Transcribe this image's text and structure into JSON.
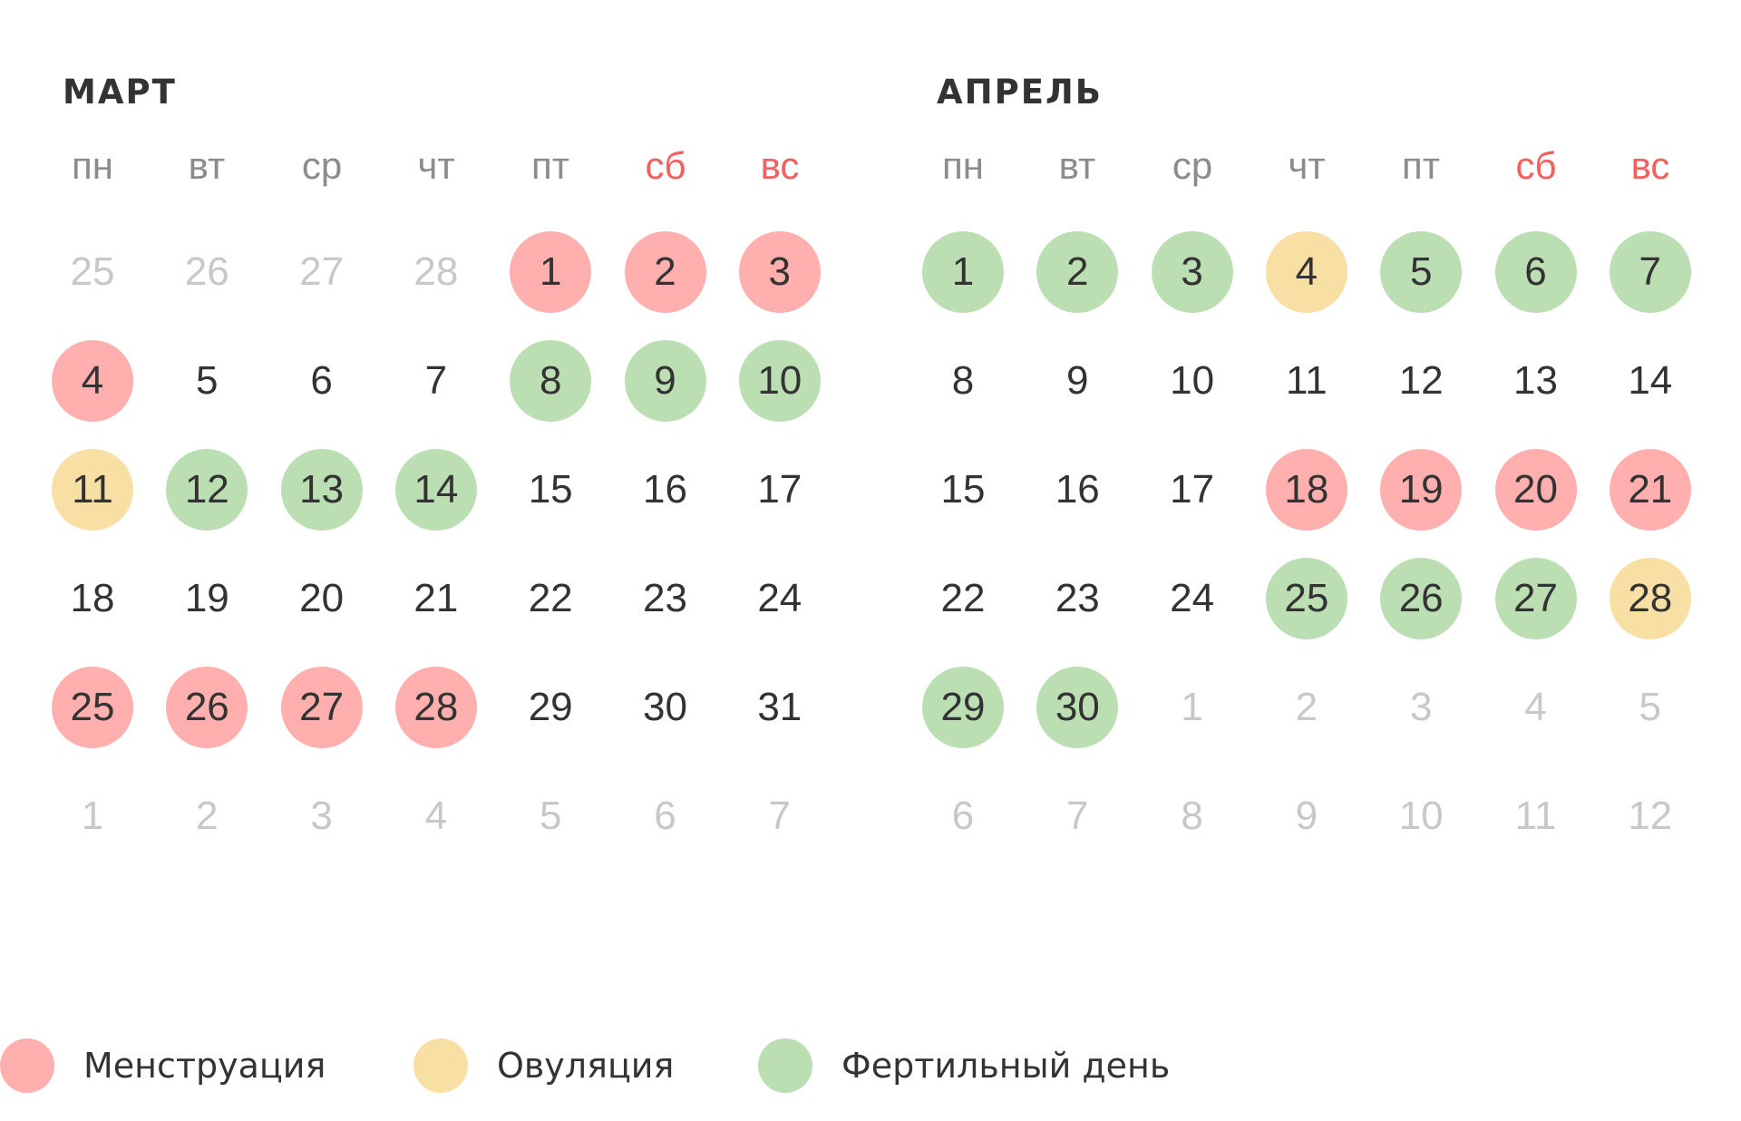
{
  "colors": {
    "menstruation": "#ffb0ae",
    "ovulation": "#f8dfa4",
    "fertile": "#bcdeb3",
    "weekend_label": "#f26060",
    "weekday_label": "#8c8c8c",
    "out_of_month": "#c8c8c8",
    "text": "#333333"
  },
  "weekdays": [
    "пн",
    "вт",
    "ср",
    "чт",
    "пт",
    "сб",
    "вс"
  ],
  "months": [
    {
      "title": "МАРТ",
      "weeks": [
        [
          {
            "d": "25",
            "s": "out"
          },
          {
            "d": "26",
            "s": "out"
          },
          {
            "d": "27",
            "s": "out"
          },
          {
            "d": "28",
            "s": "out"
          },
          {
            "d": "1",
            "s": "menstruation"
          },
          {
            "d": "2",
            "s": "menstruation"
          },
          {
            "d": "3",
            "s": "menstruation"
          }
        ],
        [
          {
            "d": "4",
            "s": "menstruation"
          },
          {
            "d": "5",
            "s": ""
          },
          {
            "d": "6",
            "s": ""
          },
          {
            "d": "7",
            "s": ""
          },
          {
            "d": "8",
            "s": "fertile"
          },
          {
            "d": "9",
            "s": "fertile"
          },
          {
            "d": "10",
            "s": "fertile"
          }
        ],
        [
          {
            "d": "11",
            "s": "ovulation"
          },
          {
            "d": "12",
            "s": "fertile"
          },
          {
            "d": "13",
            "s": "fertile"
          },
          {
            "d": "14",
            "s": "fertile"
          },
          {
            "d": "15",
            "s": ""
          },
          {
            "d": "16",
            "s": ""
          },
          {
            "d": "17",
            "s": ""
          }
        ],
        [
          {
            "d": "18",
            "s": ""
          },
          {
            "d": "19",
            "s": ""
          },
          {
            "d": "20",
            "s": ""
          },
          {
            "d": "21",
            "s": ""
          },
          {
            "d": "22",
            "s": ""
          },
          {
            "d": "23",
            "s": ""
          },
          {
            "d": "24",
            "s": ""
          }
        ],
        [
          {
            "d": "25",
            "s": "menstruation"
          },
          {
            "d": "26",
            "s": "menstruation"
          },
          {
            "d": "27",
            "s": "menstruation"
          },
          {
            "d": "28",
            "s": "menstruation"
          },
          {
            "d": "29",
            "s": ""
          },
          {
            "d": "30",
            "s": ""
          },
          {
            "d": "31",
            "s": ""
          }
        ],
        [
          {
            "d": "1",
            "s": "out"
          },
          {
            "d": "2",
            "s": "out"
          },
          {
            "d": "3",
            "s": "out"
          },
          {
            "d": "4",
            "s": "out"
          },
          {
            "d": "5",
            "s": "out"
          },
          {
            "d": "6",
            "s": "out"
          },
          {
            "d": "7",
            "s": "out"
          }
        ]
      ]
    },
    {
      "title": "АПРЕЛЬ",
      "weeks": [
        [
          {
            "d": "1",
            "s": "fertile"
          },
          {
            "d": "2",
            "s": "fertile"
          },
          {
            "d": "3",
            "s": "fertile"
          },
          {
            "d": "4",
            "s": "ovulation"
          },
          {
            "d": "5",
            "s": "fertile"
          },
          {
            "d": "6",
            "s": "fertile"
          },
          {
            "d": "7",
            "s": "fertile"
          }
        ],
        [
          {
            "d": "8",
            "s": ""
          },
          {
            "d": "9",
            "s": ""
          },
          {
            "d": "10",
            "s": ""
          },
          {
            "d": "11",
            "s": ""
          },
          {
            "d": "12",
            "s": ""
          },
          {
            "d": "13",
            "s": ""
          },
          {
            "d": "14",
            "s": ""
          }
        ],
        [
          {
            "d": "15",
            "s": ""
          },
          {
            "d": "16",
            "s": ""
          },
          {
            "d": "17",
            "s": ""
          },
          {
            "d": "18",
            "s": "menstruation"
          },
          {
            "d": "19",
            "s": "menstruation"
          },
          {
            "d": "20",
            "s": "menstruation"
          },
          {
            "d": "21",
            "s": "menstruation"
          }
        ],
        [
          {
            "d": "22",
            "s": ""
          },
          {
            "d": "23",
            "s": ""
          },
          {
            "d": "24",
            "s": ""
          },
          {
            "d": "25",
            "s": "fertile"
          },
          {
            "d": "26",
            "s": "fertile"
          },
          {
            "d": "27",
            "s": "fertile"
          },
          {
            "d": "28",
            "s": "ovulation"
          }
        ],
        [
          {
            "d": "29",
            "s": "fertile"
          },
          {
            "d": "30",
            "s": "fertile"
          },
          {
            "d": "1",
            "s": "out"
          },
          {
            "d": "2",
            "s": "out"
          },
          {
            "d": "3",
            "s": "out"
          },
          {
            "d": "4",
            "s": "out"
          },
          {
            "d": "5",
            "s": "out"
          }
        ],
        [
          {
            "d": "6",
            "s": "out"
          },
          {
            "d": "7",
            "s": "out"
          },
          {
            "d": "8",
            "s": "out"
          },
          {
            "d": "9",
            "s": "out"
          },
          {
            "d": "10",
            "s": "out"
          },
          {
            "d": "11",
            "s": "out"
          },
          {
            "d": "12",
            "s": "out"
          }
        ]
      ]
    }
  ],
  "legend": [
    {
      "label": "Менструация",
      "type": "menstruation"
    },
    {
      "label": "Овуляция",
      "type": "ovulation"
    },
    {
      "label": "Фертильный день",
      "type": "fertile"
    }
  ]
}
